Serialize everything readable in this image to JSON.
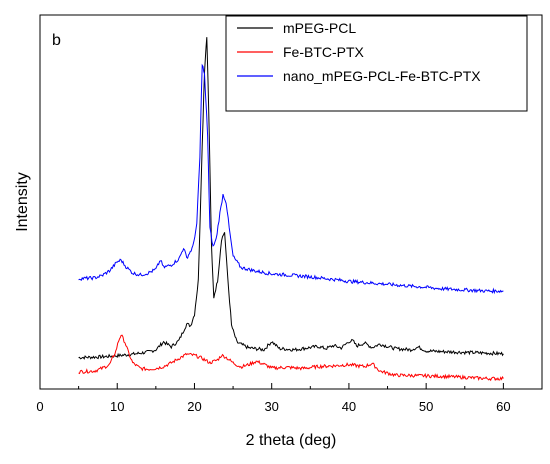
{
  "chart_data": {
    "type": "line",
    "panel_label": "b",
    "xlabel": "2 theta (deg)",
    "ylabel": "Intensity",
    "xlim": [
      0,
      65
    ],
    "ylim": [
      0,
      100
    ],
    "x_ticks": [
      0,
      10,
      20,
      30,
      40,
      50,
      60
    ],
    "y_ticks_shown": false,
    "grid": false,
    "legend_position": "top-right",
    "series": [
      {
        "name": "mPEG-PCL",
        "color": "#000000",
        "x": [
          5,
          8,
          10,
          12,
          14,
          15,
          16,
          17,
          18,
          19,
          19.5,
          20,
          20.5,
          21,
          21.3,
          21.6,
          21.9,
          22.2,
          22.5,
          23,
          23.5,
          23.9,
          24.3,
          24.8,
          25.5,
          27,
          29,
          30,
          31,
          33,
          36,
          37,
          38,
          39,
          40,
          40.5,
          41,
          42,
          43,
          44,
          46,
          48,
          49,
          50,
          52,
          55,
          58,
          60
        ],
        "y": [
          8.4,
          8.6,
          8.9,
          9.3,
          9.9,
          10.5,
          12.6,
          11.3,
          13.0,
          17.4,
          16.9,
          20.0,
          29.0,
          65.0,
          85.0,
          94.5,
          70.0,
          38.0,
          24.5,
          29.0,
          40.0,
          42.0,
          30.0,
          17.0,
          12.5,
          11.0,
          10.5,
          12.7,
          10.8,
          10.5,
          11.4,
          10.8,
          11.6,
          11.0,
          12.7,
          12.9,
          11.5,
          12.3,
          11.1,
          12.0,
          10.8,
          10.5,
          11.2,
          10.2,
          10.0,
          9.8,
          9.6,
          9.4
        ]
      },
      {
        "name": "Fe-BTC-PTX",
        "color": "#ff0000",
        "x": [
          5,
          7,
          8,
          9,
          9.8,
          10.2,
          10.5,
          11,
          11.5,
          12,
          13,
          14,
          15,
          16,
          17,
          18,
          19,
          20,
          21,
          22,
          23,
          23.5,
          24,
          25,
          26,
          27,
          28,
          29,
          30,
          32,
          34,
          36,
          38,
          40,
          42,
          43,
          44,
          46,
          48,
          50,
          52,
          55,
          58,
          60
        ],
        "y": [
          4.6,
          4.8,
          5.5,
          6.5,
          10.0,
          13.0,
          14.5,
          12.5,
          9.5,
          7.0,
          5.5,
          5.3,
          5.5,
          6.0,
          7.0,
          8.2,
          9.3,
          9.0,
          8.2,
          7.0,
          7.8,
          9.0,
          8.6,
          7.0,
          5.9,
          6.5,
          7.4,
          6.6,
          5.6,
          5.8,
          5.5,
          6.0,
          6.2,
          6.5,
          6.0,
          6.8,
          4.8,
          3.7,
          3.6,
          3.5,
          3.4,
          3.1,
          2.8,
          2.8
        ]
      },
      {
        "name": "nano_mPEG-PCL-Fe-BTC-PTX",
        "color": "#0000ff",
        "x": [
          5,
          7,
          8,
          9,
          10,
          10.5,
          11,
          12,
          13,
          14,
          15,
          15.6,
          16,
          17,
          18,
          18.6,
          19,
          19.8,
          20.3,
          20.7,
          21,
          21.3,
          21.7,
          22,
          22.4,
          22.8,
          23.3,
          23.7,
          24.1,
          24.5,
          25,
          26,
          28,
          30,
          32,
          35,
          38,
          40,
          42,
          45,
          48,
          50,
          52,
          55,
          58,
          60
        ],
        "y": [
          29.5,
          29.7,
          30.3,
          31.6,
          34.0,
          34.5,
          33.0,
          31.0,
          30.5,
          31.0,
          32.0,
          34.5,
          32.5,
          33.2,
          34.8,
          37.8,
          35.0,
          38.0,
          44.0,
          62.0,
          87.0,
          84.0,
          68.0,
          43.0,
          38.0,
          40.0,
          47.0,
          52.0,
          50.0,
          43.0,
          35.5,
          32.5,
          31.5,
          30.8,
          30.5,
          30.0,
          29.3,
          28.8,
          28.5,
          28.0,
          27.5,
          27.2,
          26.8,
          26.5,
          26.2,
          26.2
        ]
      }
    ]
  }
}
